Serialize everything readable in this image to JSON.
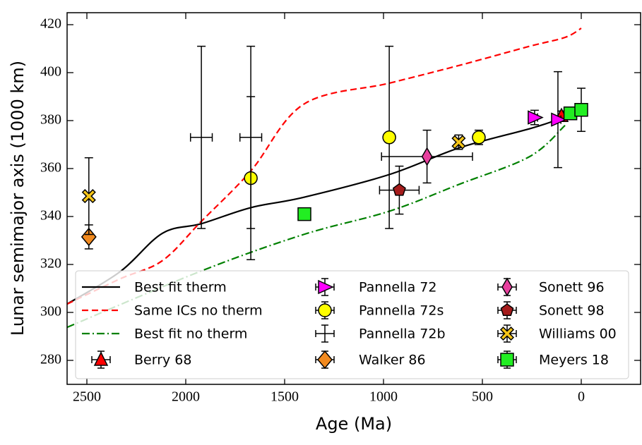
{
  "chart_data": {
    "type": "errorbar-scatter",
    "xlabel": "Age (Ma)",
    "ylabel": "Lunar semimajor axis (1000 km)",
    "xlim": [
      2600,
      -300
    ],
    "ylim": [
      270,
      425
    ],
    "xticks": [
      2500,
      2000,
      1500,
      1000,
      500,
      0
    ],
    "yticks": [
      280,
      300,
      320,
      340,
      360,
      380,
      400,
      420
    ],
    "legend": "lower left",
    "series": [
      {
        "name": "Best fit therm",
        "kind": "line",
        "color": "#000000",
        "dash": "solid",
        "x": [
          2600,
          2332,
          2118,
          1921,
          1671,
          1404,
          971,
          618,
          261,
          118
        ],
        "values": [
          303.5,
          317,
          333,
          337,
          343.7,
          348,
          357.5,
          368.6,
          376.6,
          380.4
        ]
      },
      {
        "name": "Same ICs no therm",
        "kind": "line",
        "color": "#ff0000",
        "dash": "dashed",
        "x": [
          2600,
          2332,
          2118,
          1921,
          1671,
          1404,
          971,
          618,
          261,
          82,
          0
        ],
        "values": [
          303.5,
          314,
          321.6,
          338,
          359,
          386.8,
          395.6,
          403,
          411,
          414.7,
          418.5
        ]
      },
      {
        "name": "Best fit no therm",
        "kind": "line",
        "color": "#008000",
        "dash": "dashdot",
        "x": [
          2600,
          1921,
          1404,
          971,
          618,
          261,
          82
        ],
        "values": [
          293.8,
          317.3,
          332.5,
          342.2,
          353.4,
          365,
          378
        ]
      },
      {
        "name": "Berry 68",
        "kind": "points",
        "marker": "triangle-up",
        "color": "#ff0000",
        "x": [
          100
        ],
        "values": [
          382
        ],
        "yerr": [
          2
        ],
        "xerr": [
          10
        ]
      },
      {
        "name": "Pannella 72",
        "kind": "points",
        "marker": "triangle-right",
        "color": "#ff00ff",
        "x": [
          236,
          118
        ],
        "values": [
          381.3,
          380.4
        ],
        "yerr": [
          3,
          20
        ],
        "xerr": [
          15,
          15
        ]
      },
      {
        "name": "Pannella 72s",
        "kind": "points",
        "marker": "circle",
        "color": "#ffff00",
        "x": [
          1671,
          971,
          518
        ],
        "values": [
          356,
          373,
          373
        ],
        "yerr": [
          34,
          38,
          3
        ],
        "xerr": [
          15,
          15,
          15
        ]
      },
      {
        "name": "Pannella 72b",
        "kind": "points",
        "marker": "none",
        "color": "#000000",
        "x": [
          1921,
          1671
        ],
        "values": [
          373,
          373
        ],
        "yerr": [
          38,
          38
        ],
        "xerr": [
          55,
          55
        ]
      },
      {
        "name": "Walker 86",
        "kind": "points",
        "marker": "diamond",
        "color": "#f28a1f",
        "x": [
          2490
        ],
        "values": [
          331.5
        ],
        "yerr": [
          5
        ],
        "xerr": [
          10
        ]
      },
      {
        "name": "Sonett 96",
        "kind": "points",
        "marker": "diamond-thin",
        "color": "#e8409e",
        "x": [
          780
        ],
        "values": [
          365
        ],
        "yerr": [
          11
        ],
        "xerr": [
          230
        ]
      },
      {
        "name": "Sonett 98",
        "kind": "points",
        "marker": "pentagon",
        "color": "#a51c1c",
        "x": [
          920
        ],
        "values": [
          351
        ],
        "yerr": [
          10
        ],
        "xerr": [
          100
        ]
      },
      {
        "name": "Williams 00",
        "kind": "points",
        "marker": "x",
        "color": "#f5c518",
        "x": [
          2490,
          620
        ],
        "values": [
          348.5,
          371
        ],
        "yerr": [
          16,
          3
        ],
        "xerr": [
          10,
          10
        ]
      },
      {
        "name": "Meyers 18",
        "kind": "points",
        "marker": "square",
        "color": "#22ee22",
        "x": [
          1400,
          55,
          0
        ],
        "values": [
          341,
          383,
          384.5
        ],
        "yerr": [
          1,
          1,
          9
        ],
        "xerr": [
          5,
          5,
          5
        ]
      }
    ]
  }
}
